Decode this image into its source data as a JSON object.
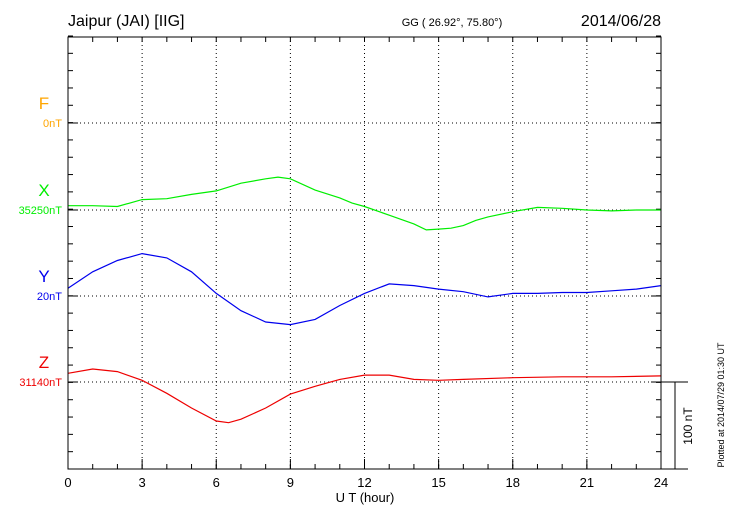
{
  "chart_data": {
    "type": "line",
    "title": "Jaipur (JAI)  [IIG]",
    "subtitle": "GG ( 26.92°,  75.80°)",
    "date": "2014/06/28",
    "xlabel": "U T (hour)",
    "xlim": [
      0,
      24
    ],
    "xticks": [
      "0",
      "3",
      "6",
      "9",
      "12",
      "15",
      "18",
      "21",
      "24"
    ],
    "scale_label": "100 nT",
    "plotted_note": "Plotted at 2014/07/29 01:30 UT",
    "grid": true,
    "series": [
      {
        "name": "F",
        "baseline_label": "0nT",
        "color": "#ffa500",
        "x": [],
        "y": []
      },
      {
        "name": "X",
        "baseline_label": "35250nT",
        "color": "#00ee00",
        "x": [
          0,
          1,
          2,
          3,
          4,
          5,
          6,
          7,
          8,
          8.5,
          9,
          10,
          11,
          11.5,
          12,
          13,
          14,
          14.5,
          15,
          15.5,
          16,
          16.5,
          17,
          18,
          19,
          20,
          21,
          22,
          23,
          24
        ],
        "y": [
          5,
          5,
          4,
          12,
          13,
          18,
          22,
          31,
          36,
          38,
          36,
          23,
          14,
          8,
          4,
          -6,
          -16,
          -23,
          -22,
          -21,
          -18,
          -12,
          -8,
          -2,
          3,
          2,
          0,
          -1,
          0,
          0
        ]
      },
      {
        "name": "Y",
        "baseline_label": "20nT",
        "color": "#0000ee",
        "x": [
          0,
          1,
          2,
          3,
          4,
          5,
          6,
          7,
          8,
          9,
          10,
          11,
          12,
          13,
          14,
          15,
          16,
          17,
          18,
          19,
          20,
          21,
          22,
          23,
          24
        ],
        "y": [
          9,
          28,
          41,
          49,
          44,
          28,
          3,
          -17,
          -30,
          -33,
          -27,
          -11,
          3,
          14,
          12,
          8,
          5,
          -1,
          3,
          3,
          4,
          4,
          6,
          8,
          12
        ]
      },
      {
        "name": "Z",
        "baseline_label": "31140nT",
        "color": "#ee0000",
        "x": [
          0,
          1,
          2,
          3,
          4,
          5,
          6,
          6.5,
          7,
          8,
          9,
          10,
          11,
          12,
          13,
          14,
          15,
          16,
          18,
          20,
          22,
          24
        ],
        "y": [
          10,
          15,
          12,
          2,
          -13,
          -30,
          -45,
          -47,
          -43,
          -30,
          -14,
          -5,
          3,
          8,
          8,
          3,
          2,
          3,
          5,
          6,
          6,
          7
        ]
      }
    ]
  }
}
